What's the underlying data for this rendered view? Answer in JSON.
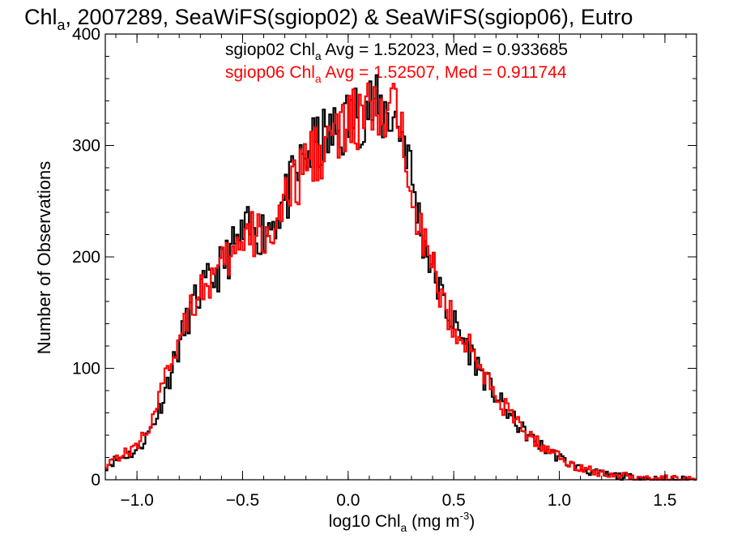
{
  "chart_data": {
    "type": "line",
    "title": {
      "base": "Chl",
      "sub": "a",
      "rest": ", 2007289, SeaWiFS(sgiop02) & SeaWiFS(sgiop06), Eutro"
    },
    "xlabel": {
      "base": "log10 Chl",
      "sub": "a",
      "rest": " (mg m",
      "sup": "-3",
      "end": ")"
    },
    "ylabel": "Number of Observations",
    "xlim": [
      -1.15,
      1.65
    ],
    "ylim": [
      0,
      400
    ],
    "x_ticks": [
      -1.0,
      -0.5,
      0.0,
      0.5,
      1.0,
      1.5
    ],
    "x_tick_labels": [
      "−1.0",
      "−0.5",
      "0.0",
      "0.5",
      "1.0",
      "1.5"
    ],
    "y_ticks": [
      0,
      100,
      200,
      300,
      400
    ],
    "y_tick_labels": [
      "0",
      "100",
      "200",
      "300",
      "400"
    ],
    "x_minor_step": 0.1,
    "y_minor_step": 20,
    "bin_width": 0.01,
    "series": [
      {
        "name": "sgiop02",
        "color": "#000000",
        "annotation": {
          "name": "sgiop02",
          "chl": "Chl",
          "sub": "a",
          "text": " Avg = 1.52023, Med = 0.933685"
        },
        "profile": [
          [
            -1.15,
            12
          ],
          [
            -1.1,
            18
          ],
          [
            -1.05,
            22
          ],
          [
            -1.0,
            26
          ],
          [
            -0.95,
            40
          ],
          [
            -0.9,
            60
          ],
          [
            -0.85,
            90
          ],
          [
            -0.8,
            120
          ],
          [
            -0.75,
            150
          ],
          [
            -0.7,
            168
          ],
          [
            -0.65,
            178
          ],
          [
            -0.6,
            192
          ],
          [
            -0.55,
            206
          ],
          [
            -0.5,
            218
          ],
          [
            -0.45,
            226
          ],
          [
            -0.4,
            222
          ],
          [
            -0.35,
            234
          ],
          [
            -0.3,
            250
          ],
          [
            -0.25,
            270
          ],
          [
            -0.2,
            290
          ],
          [
            -0.15,
            300
          ],
          [
            -0.1,
            306
          ],
          [
            -0.05,
            312
          ],
          [
            0.0,
            322
          ],
          [
            0.05,
            330
          ],
          [
            0.1,
            338
          ],
          [
            0.15,
            328
          ],
          [
            0.2,
            330
          ],
          [
            0.25,
            315
          ],
          [
            0.28,
            300
          ],
          [
            0.3,
            270
          ],
          [
            0.35,
            220
          ],
          [
            0.4,
            190
          ],
          [
            0.45,
            160
          ],
          [
            0.5,
            140
          ],
          [
            0.55,
            125
          ],
          [
            0.6,
            108
          ],
          [
            0.65,
            90
          ],
          [
            0.7,
            75
          ],
          [
            0.75,
            62
          ],
          [
            0.8,
            50
          ],
          [
            0.85,
            40
          ],
          [
            0.9,
            32
          ],
          [
            0.95,
            26
          ],
          [
            1.0,
            20
          ],
          [
            1.05,
            14
          ],
          [
            1.1,
            10
          ],
          [
            1.15,
            7
          ],
          [
            1.2,
            5
          ],
          [
            1.25,
            4
          ],
          [
            1.3,
            3
          ],
          [
            1.35,
            2
          ],
          [
            1.4,
            1.5
          ],
          [
            1.45,
            1
          ],
          [
            1.5,
            0.5
          ],
          [
            1.55,
            0.2
          ],
          [
            1.65,
            0
          ]
        ]
      },
      {
        "name": "sgiop06",
        "color": "#ff0000",
        "annotation": {
          "name": "sgiop06",
          "chl": "Chl",
          "sub": "a",
          "text": " Avg = 1.52507, Med = 0.911744"
        },
        "profile": [
          [
            -1.15,
            14
          ],
          [
            -1.1,
            20
          ],
          [
            -1.05,
            24
          ],
          [
            -1.0,
            30
          ],
          [
            -0.95,
            46
          ],
          [
            -0.9,
            68
          ],
          [
            -0.85,
            100
          ],
          [
            -0.8,
            128
          ],
          [
            -0.75,
            158
          ],
          [
            -0.7,
            170
          ],
          [
            -0.65,
            178
          ],
          [
            -0.6,
            188
          ],
          [
            -0.55,
            200
          ],
          [
            -0.5,
            212
          ],
          [
            -0.45,
            220
          ],
          [
            -0.4,
            218
          ],
          [
            -0.35,
            228
          ],
          [
            -0.3,
            244
          ],
          [
            -0.25,
            264
          ],
          [
            -0.2,
            284
          ],
          [
            -0.15,
            296
          ],
          [
            -0.1,
            302
          ],
          [
            -0.05,
            308
          ],
          [
            0.0,
            316
          ],
          [
            0.05,
            324
          ],
          [
            0.1,
            330
          ],
          [
            0.15,
            322
          ],
          [
            0.2,
            328
          ],
          [
            0.25,
            318
          ],
          [
            0.28,
            300
          ],
          [
            0.3,
            268
          ],
          [
            0.35,
            222
          ],
          [
            0.4,
            188
          ],
          [
            0.45,
            160
          ],
          [
            0.5,
            140
          ],
          [
            0.55,
            126
          ],
          [
            0.6,
            110
          ],
          [
            0.65,
            92
          ],
          [
            0.7,
            76
          ],
          [
            0.75,
            63
          ],
          [
            0.8,
            51
          ],
          [
            0.85,
            41
          ],
          [
            0.9,
            33
          ],
          [
            0.95,
            27
          ],
          [
            1.0,
            21
          ],
          [
            1.05,
            15
          ],
          [
            1.1,
            11
          ],
          [
            1.15,
            8
          ],
          [
            1.2,
            6
          ],
          [
            1.25,
            5
          ],
          [
            1.3,
            4
          ],
          [
            1.35,
            3
          ],
          [
            1.4,
            2
          ],
          [
            1.45,
            1.5
          ],
          [
            1.5,
            1
          ],
          [
            1.55,
            0.5
          ],
          [
            1.65,
            0
          ]
        ]
      }
    ],
    "grid": false,
    "legend": "top-center annotations"
  }
}
